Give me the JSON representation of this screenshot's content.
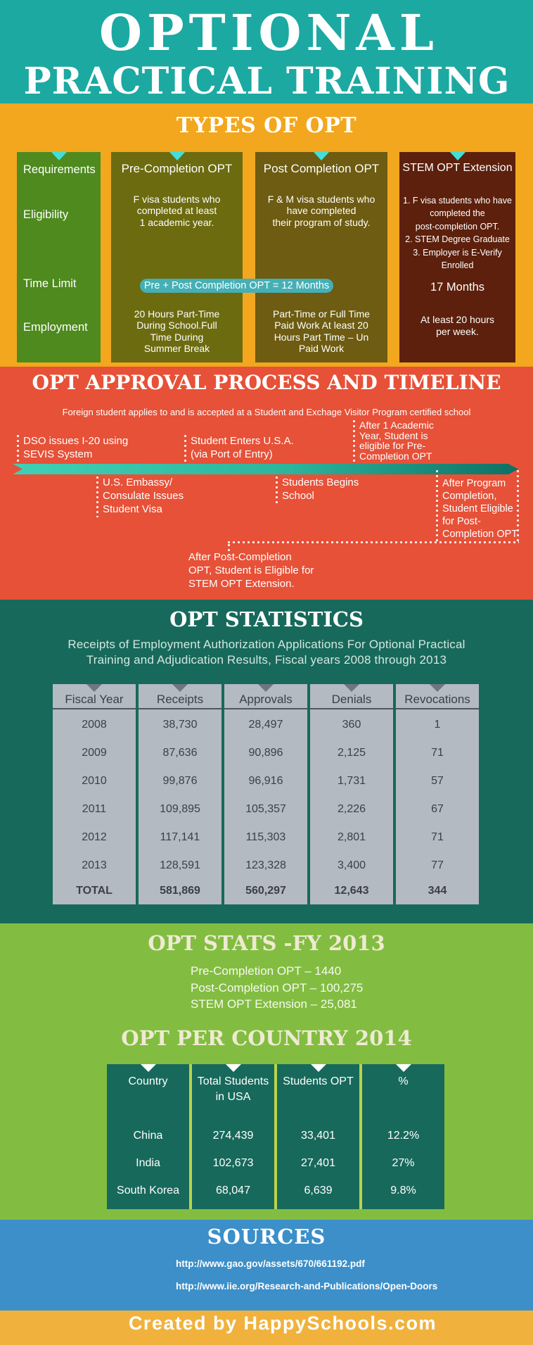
{
  "palette": {
    "teal_header": "#1CA9A2",
    "yellow_band": "#F2A71E",
    "column_green": "#4E8A1E",
    "column_olive": "#6C6B10",
    "column_brown": "#6D5C11",
    "column_maroon": "#5C200C",
    "cyan_triangle": "#3FE0DB",
    "pill_teal": "#45AFB6",
    "red_band": "#E65138",
    "ribbon_start": "#40D0B5",
    "ribbon_end": "#0E6F63",
    "dark_green_band": "#17695B",
    "table_gray": "#B3BAC2",
    "light_green_band": "#82BD41",
    "cream_title": "#EFEAD2",
    "blue_band": "#3C8FC9",
    "footer_yellow": "#F0B23D"
  },
  "hero": {
    "title_line1": "OPTIONAL",
    "title_line2": "PRACTICAL TRAINING"
  },
  "types": {
    "title": "TYPES OF OPT",
    "requirements_column": {
      "header": "Requirements",
      "rows": [
        "Eligibility",
        "Time Limit",
        "Employment"
      ]
    },
    "columns": [
      {
        "title": "Pre-Completion OPT",
        "eligibility": "F visa students who\ncompleted at least\n1 academic year.",
        "employment": "20 Hours Part-Time\nDuring School.Full\nTime During\nSummer Break"
      },
      {
        "title": "Post Completion OPT",
        "eligibility": "F & M visa students who\nhave completed\ntheir program of study.",
        "employment": "Part-Time or Full Time\nPaid Work At least 20\nHours Part Time – Un\nPaid Work"
      },
      {
        "title": "STEM OPT Extension",
        "eligibility": "1. F visa students who have\ncompleted the\npost-completion OPT.\n2. STEM Degree Graduate\n3. Employer is E-Verify\nEnrolled",
        "time_limit": "17 Months",
        "employment": "At least 20 hours\nper week."
      }
    ],
    "pill": "Pre + Post Completion OPT = 12 Months"
  },
  "timeline": {
    "title": "OPT APPROVAL PROCESS AND TIMELINE",
    "subtitle": "Foreign student applies to and is accepted at a Student and Exchage Visitor Program certified school",
    "events_above": [
      "DSO issues I-20 using\nSEVIS System",
      "Student Enters U.S.A.\n(via Port of Entry)",
      "After 1 Academic\nYear, Student is\neligible for Pre-\nCompletion OPT"
    ],
    "events_below": [
      "U.S. Embassy/\nConsulate Issues\nStudent Visa",
      "Students Begins\nSchool",
      "After Program\nCompletion,\nStudent Eligible\nfor Post-\nCompletion OPT"
    ],
    "note": "After Post-Completion\nOPT, Student is Eligible for\nSTEM OPT Extension."
  },
  "stats": {
    "title": "OPT STATISTICS",
    "subtitle": "Receipts of Employment Authorization Applications For Optional Practical\nTraining and Adjudication Results, Fiscal years 2008 through 2013",
    "table": {
      "columns": [
        {
          "header": "Fiscal Year",
          "values": [
            "2008",
            "2009",
            "2010",
            "2011",
            "2012",
            "2013"
          ],
          "total": "TOTAL"
        },
        {
          "header": "Receipts",
          "values": [
            "38,730",
            "87,636",
            "99,876",
            "109,895",
            "117,141",
            "128,591"
          ],
          "total": "581,869"
        },
        {
          "header": "Approvals",
          "values": [
            "28,497",
            "90,896",
            "96,916",
            "105,357",
            "115,303",
            "123,328"
          ],
          "total": "560,297"
        },
        {
          "header": "Denials",
          "values": [
            "360",
            "2,125",
            "1,731",
            "2,226",
            "2,801",
            "3,400"
          ],
          "total": "12,643"
        },
        {
          "header": "Revocations",
          "values": [
            "1",
            "71",
            "57",
            "67",
            "71",
            "77"
          ],
          "total": "344"
        }
      ]
    }
  },
  "fy2013": {
    "title": "OPT STATS -FY 2013",
    "lines": [
      "Pre-Completion OPT – 1440",
      "Post-Completion OPT – 100,275",
      "STEM OPT Extension – 25,081"
    ]
  },
  "country": {
    "title": "OPT PER COUNTRY 2014",
    "table": {
      "columns": [
        {
          "header": "Country",
          "values": [
            "China",
            "India",
            "South Korea"
          ]
        },
        {
          "header": "Total Students\nin USA",
          "values": [
            "274,439",
            "102,673",
            "68,047"
          ]
        },
        {
          "header": "Students OPT",
          "values": [
            "33,401",
            "27,401",
            "6,639"
          ]
        },
        {
          "header": "%",
          "values": [
            "12.2%",
            "27%",
            "9.8%"
          ]
        }
      ]
    }
  },
  "sources": {
    "title": "SOURCES",
    "links": [
      "http://www.gao.gov/assets/670/661192.pdf",
      "http://www.iie.org/Research-and-Publications/Open-Doors"
    ]
  },
  "footer": {
    "credit": "Created by HappySchools.com"
  }
}
